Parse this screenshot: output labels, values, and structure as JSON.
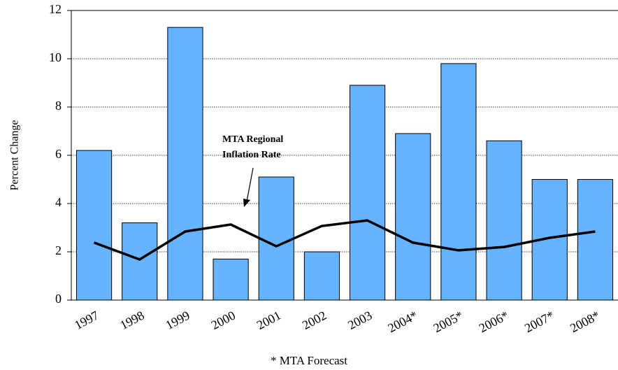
{
  "chart_data": {
    "type": "bar",
    "y_label": "Percent Change",
    "footnote": "* MTA Forecast",
    "annotation": [
      "MTA Regional",
      "Inflation Rate"
    ],
    "categories": [
      "1997",
      "1998",
      "1999",
      "2000",
      "2001",
      "2002",
      "2003",
      "2004*",
      "2005*",
      "2006*",
      "2007*",
      "2008*"
    ],
    "series": [
      {
        "type": "bar",
        "color": "#66b3ff",
        "values": [
          6.2,
          3.2,
          11.3,
          1.7,
          5.1,
          2.0,
          8.9,
          6.9,
          9.8,
          6.6,
          5.0,
          5.0
        ]
      },
      {
        "type": "line",
        "color": "#000000",
        "values": [
          2.38,
          1.68,
          2.84,
          3.13,
          2.23,
          3.07,
          3.3,
          2.38,
          2.06,
          2.2,
          2.58,
          2.84
        ]
      }
    ],
    "ylim": [
      0,
      12
    ],
    "yticks": [
      0,
      2,
      4,
      6,
      8,
      10,
      12
    ],
    "grid": true
  }
}
